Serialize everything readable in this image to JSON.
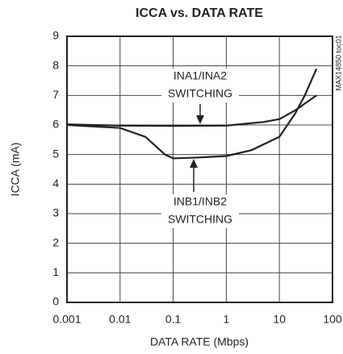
{
  "chart_data": {
    "type": "line",
    "title": "ICCA vs. DATA RATE",
    "xlabel": "DATA RATE (Mbps)",
    "ylabel": "ICCA (mA)",
    "xscale": "log",
    "xlim": [
      0.001,
      100
    ],
    "xticks": [
      0.001,
      0.01,
      0.1,
      1,
      10,
      100
    ],
    "ylim": [
      0,
      9
    ],
    "yticks": [
      0,
      1,
      2,
      3,
      4,
      5,
      6,
      7,
      8,
      9
    ],
    "grid": true,
    "series": [
      {
        "name": "INA1/INA2 SWITCHING",
        "color": "#222222",
        "x": [
          0.001,
          0.01,
          0.1,
          1,
          5,
          10,
          20,
          50
        ],
        "values": [
          6.02,
          5.98,
          5.97,
          5.98,
          6.1,
          6.2,
          6.5,
          7.0
        ]
      },
      {
        "name": "INB1/INB2 SWITCHING",
        "color": "#222222",
        "x": [
          0.001,
          0.01,
          0.03,
          0.07,
          0.1,
          0.3,
          1,
          3,
          10,
          20,
          30,
          50
        ],
        "values": [
          6.0,
          5.9,
          5.6,
          5.0,
          4.87,
          4.9,
          4.95,
          5.15,
          5.6,
          6.4,
          7.0,
          7.9
        ]
      }
    ],
    "annotations": [
      "INA1/INA2",
      "SWITCHING",
      "INB1/INB2",
      "SWITCHING"
    ],
    "side_label": "MAX14850 toc01"
  }
}
